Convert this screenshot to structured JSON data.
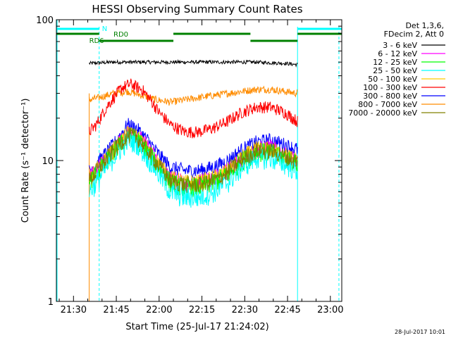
{
  "title": "HESSI Observing Summary Count Rates",
  "xlabel": "Start Time (25-Jul-17 21:24:02)",
  "ylabel": "Count Rate (s⁻¹ detector⁻¹)",
  "footer_date": "28-Jul-2017 10:01",
  "legend": {
    "header1": "Det 1,3,6,",
    "header2": "FDecim 2, Att 0",
    "entries": [
      {
        "label": "3 - 6 keV",
        "color": "#000000"
      },
      {
        "label": "6 - 12 keV",
        "color": "#ff00ff"
      },
      {
        "label": "12 - 25 keV",
        "color": "#00ff00"
      },
      {
        "label": "25 - 50 keV",
        "color": "#00ffff"
      },
      {
        "label": "50 - 100 keV",
        "color": "#ffcc00"
      },
      {
        "label": "100 - 300 keV",
        "color": "#ff0000"
      },
      {
        "label": "300 - 800 keV",
        "color": "#0000ff"
      },
      {
        "label": "800 - 7000 keV",
        "color": "#ff8c00"
      },
      {
        "label": "7000 - 20000 keV",
        "color": "#808000"
      }
    ]
  },
  "annotations": {
    "n_label": "N",
    "rd0_label": "RD0",
    "rd6_label": "RD6"
  },
  "chart_data": {
    "type": "line",
    "title": "HESSI Observing Summary Count Rates",
    "xlabel": "Start Time (25-Jul-17 21:24:02)",
    "ylabel": "Count Rate (s⁻¹ detector⁻¹)",
    "x_unit": "minutes since 21:24:02",
    "xlim": [
      0,
      100
    ],
    "ylim": [
      1,
      100
    ],
    "yscale": "log",
    "x_ticks": [
      {
        "label": "21:30",
        "x": 6
      },
      {
        "label": "21:45",
        "x": 21
      },
      {
        "label": "22:00",
        "x": 36
      },
      {
        "label": "22:15",
        "x": 51
      },
      {
        "label": "22:30",
        "x": 66
      },
      {
        "label": "22:45",
        "x": 81
      },
      {
        "label": "23:00",
        "x": 96
      }
    ],
    "y_ticks": [
      {
        "label": "1",
        "y": 1
      },
      {
        "label": "10",
        "y": 10
      },
      {
        "label": "100",
        "y": 100
      }
    ],
    "series": [
      {
        "name": "3 - 6 keV",
        "color": "#000000",
        "x": [
          11.5,
          20,
          30,
          40,
          50,
          60,
          70,
          80,
          84.5
        ],
        "y": [
          49,
          50,
          50,
          50,
          50,
          50,
          50,
          49,
          48
        ]
      },
      {
        "name": "800 - 7000 keV",
        "color": "#ff8c00",
        "x": [
          11.5,
          15,
          20,
          25,
          30,
          35,
          40,
          45,
          50,
          55,
          60,
          65,
          70,
          75,
          80,
          84.5
        ],
        "y": [
          27,
          28,
          30,
          31,
          29,
          27,
          26,
          27,
          28,
          29,
          30,
          31,
          32,
          32,
          31,
          30
        ]
      },
      {
        "name": "100 - 300 keV",
        "color": "#ff0000",
        "x": [
          11.5,
          14,
          17,
          20,
          23,
          26,
          30,
          33,
          36,
          40,
          45,
          50,
          55,
          60,
          65,
          70,
          75,
          80,
          84.5
        ],
        "y": [
          16,
          18,
          23,
          28,
          33,
          35,
          32,
          27,
          22,
          18,
          16,
          16,
          17,
          19,
          22,
          24,
          24,
          22,
          19
        ]
      },
      {
        "name": "300 - 800 keV",
        "color": "#0000ff",
        "x": [
          11.5,
          15,
          20,
          25,
          28,
          32,
          36,
          40,
          45,
          50,
          55,
          60,
          65,
          70,
          75,
          80,
          84.5
        ],
        "y": [
          8.5,
          10,
          13,
          18,
          17,
          14,
          11,
          9,
          8.5,
          8.5,
          9,
          10,
          12,
          13.5,
          14,
          13,
          12
        ]
      },
      {
        "name": "6 - 12 keV",
        "color": "#ff00ff",
        "x": [
          11.5,
          15,
          20,
          25,
          28,
          32,
          36,
          40,
          45,
          50,
          55,
          60,
          65,
          70,
          75,
          80,
          84.5
        ],
        "y": [
          7.5,
          9,
          12,
          16,
          15.5,
          12.5,
          9.5,
          7.5,
          7,
          7,
          7.5,
          8.5,
          10.5,
          12,
          12.5,
          11,
          10
        ]
      },
      {
        "name": "50 - 100 keV",
        "color": "#ffcc00",
        "x": [
          11.5,
          15,
          20,
          25,
          28,
          32,
          36,
          40,
          45,
          50,
          55,
          60,
          65,
          70,
          75,
          80,
          84.5
        ],
        "y": [
          7.5,
          9,
          12,
          15.5,
          15,
          12,
          9.5,
          7.5,
          7,
          7,
          7.5,
          8.5,
          10.5,
          12,
          12,
          11,
          10
        ]
      },
      {
        "name": "12 - 25 keV",
        "color": "#00ff00",
        "x": [
          11.5,
          15,
          20,
          25,
          28,
          32,
          36,
          40,
          45,
          50,
          55,
          60,
          65,
          70,
          75,
          80,
          84.5
        ],
        "y": [
          7,
          8.5,
          11.5,
          15,
          14.5,
          11.5,
          9,
          7,
          6.5,
          6.5,
          7,
          8,
          10,
          11.5,
          11.5,
          10.5,
          9.5
        ]
      },
      {
        "name": "25 - 50 keV",
        "color": "#00ffff",
        "x": [
          11.5,
          15,
          20,
          25,
          28,
          32,
          36,
          40,
          45,
          50,
          55,
          60,
          65,
          70,
          75,
          80,
          84.5
        ],
        "y": [
          6,
          7.5,
          10.5,
          14,
          13.5,
          10.5,
          8,
          6,
          5.5,
          5.5,
          6,
          7,
          9,
          10.5,
          10.5,
          9.5,
          8.5
        ]
      },
      {
        "name": "7000 - 20000 keV",
        "color": "#808000",
        "x": [
          11.5,
          15,
          20,
          25,
          28,
          32,
          36,
          40,
          45,
          50,
          55,
          60,
          65,
          70,
          75,
          80,
          84.5
        ],
        "y": [
          7.2,
          8.8,
          11.8,
          15.2,
          14.8,
          11.8,
          9.2,
          7.2,
          6.8,
          6.8,
          7.2,
          8.2,
          10.2,
          11.8,
          11.8,
          10.8,
          9.8
        ]
      }
    ],
    "overlays": {
      "night_intervals": [
        [
          0,
          15
        ],
        [
          84.5,
          100
        ]
      ],
      "night_color": "#00ffff",
      "rd0_intervals": [
        [
          0,
          15
        ],
        [
          41,
          68
        ],
        [
          84.5,
          100
        ]
      ],
      "rd6_intervals": [
        [
          15,
          41
        ],
        [
          68,
          84.5
        ]
      ],
      "rd_color": "#008000"
    }
  }
}
